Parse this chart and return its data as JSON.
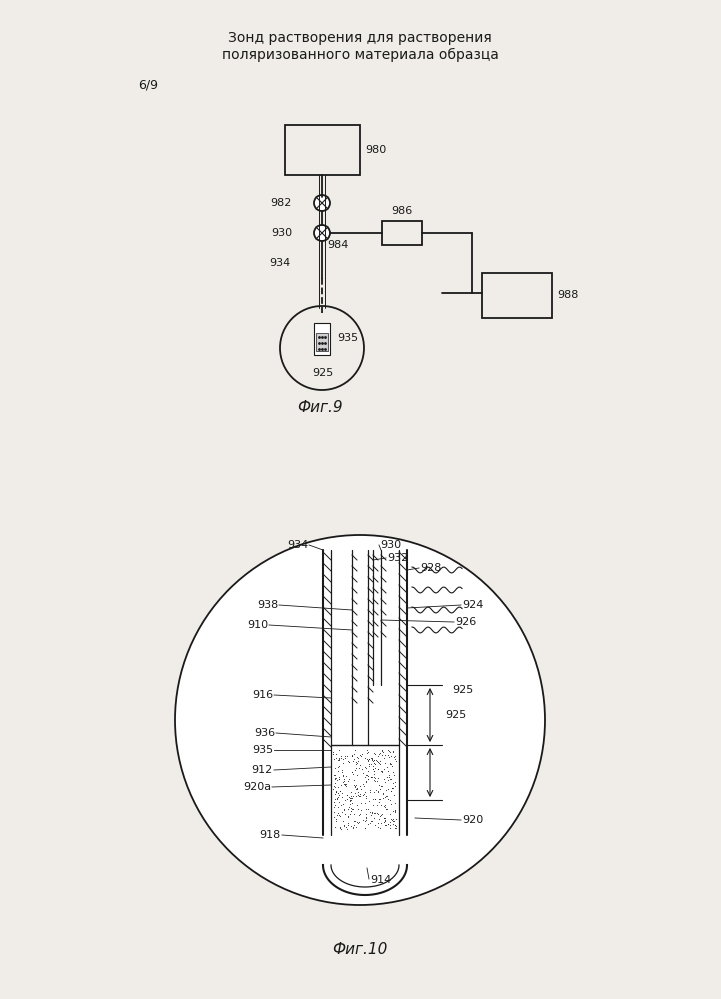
{
  "title_line1": "Зонд растворения для растворения",
  "title_line2": "поляризованного материала образца",
  "page_label": "6/9",
  "fig9_label": "Фиг.9",
  "fig10_label": "Фиг.10",
  "bg_color": "#f0ede8",
  "line_color": "#1a1a1a"
}
